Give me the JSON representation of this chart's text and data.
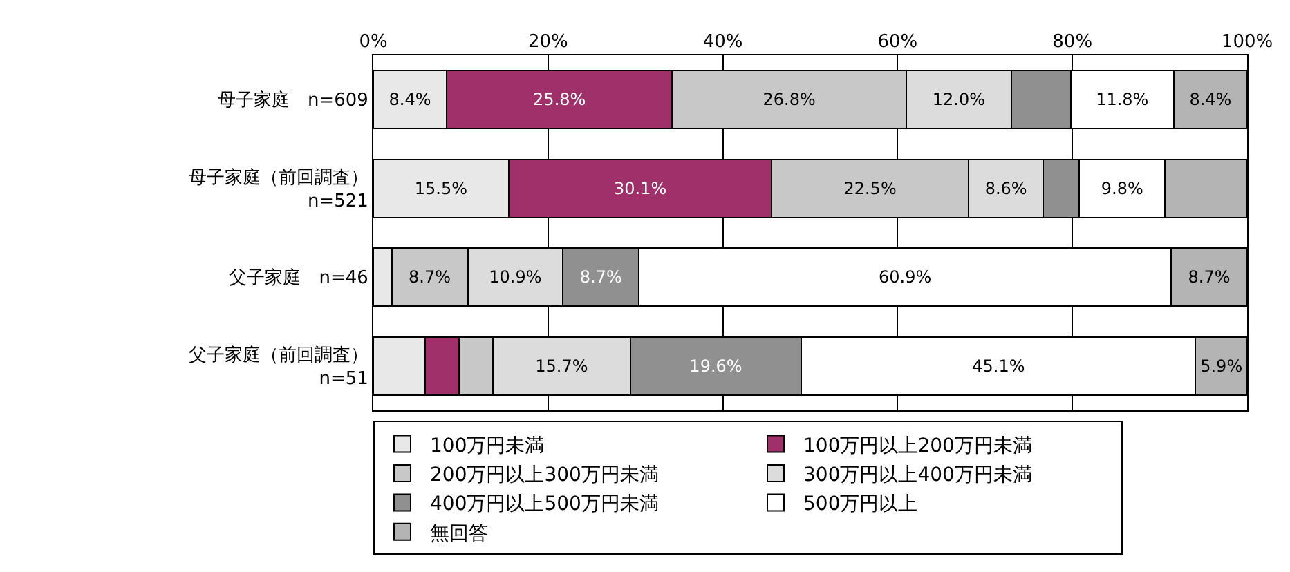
{
  "chart_data": {
    "type": "bar",
    "orientation": "horizontal",
    "stacked": true,
    "categories": [
      "母子家庭　n=609",
      "母子家庭（前回調査）\nn=521",
      "父子家庭　n=46",
      "父子家庭（前回調査）\nn=51"
    ],
    "xlim": [
      0,
      100
    ],
    "xticks": [
      {
        "value": 0,
        "label": "0%"
      },
      {
        "value": 20,
        "label": "20%"
      },
      {
        "value": 40,
        "label": "40%"
      },
      {
        "value": 60,
        "label": "60%"
      },
      {
        "value": 80,
        "label": "80%"
      },
      {
        "value": 100,
        "label": "100%"
      }
    ],
    "grid": "x",
    "legend": "bottom",
    "series": [
      {
        "name": "100万円未満",
        "color": "#e8e8e8",
        "values": [
          8.4,
          15.5,
          2.1,
          5.9
        ],
        "value_labels": [
          "8.4%",
          "15.5%",
          null,
          null
        ]
      },
      {
        "name": "100万円以上200万円未満",
        "color": "#a0306a",
        "values": [
          25.8,
          30.1,
          0,
          3.9
        ],
        "value_labels": [
          "25.8%",
          "30.1%",
          null,
          null
        ]
      },
      {
        "name": "200万円以上300万円未満",
        "color": "#c8c8c8",
        "values": [
          26.8,
          22.5,
          8.7,
          3.9
        ],
        "value_labels": [
          "26.8%",
          "22.5%",
          "8.7%",
          null
        ]
      },
      {
        "name": "300万円以上400万円未満",
        "color": "#dcdcdc",
        "values": [
          12.0,
          8.6,
          10.9,
          15.7
        ],
        "value_labels": [
          "12.0%",
          "8.6%",
          "10.9%",
          "15.7%"
        ]
      },
      {
        "name": "400万円以上500万円未満",
        "color": "#909090",
        "values": [
          6.8,
          4.1,
          8.7,
          19.6
        ],
        "value_labels": [
          null,
          null,
          "8.7%",
          "19.6%"
        ]
      },
      {
        "name": "500万円以上",
        "color": "#ffffff",
        "values": [
          11.8,
          9.8,
          60.9,
          45.1
        ],
        "value_labels": [
          "11.8%",
          "9.8%",
          "60.9%",
          "45.1%"
        ]
      },
      {
        "name": "無回答",
        "color": "#b4b4b4",
        "values": [
          8.4,
          9.3,
          8.7,
          5.9
        ],
        "value_labels": [
          "8.4%",
          null,
          "8.7%",
          "5.9%"
        ]
      }
    ]
  }
}
